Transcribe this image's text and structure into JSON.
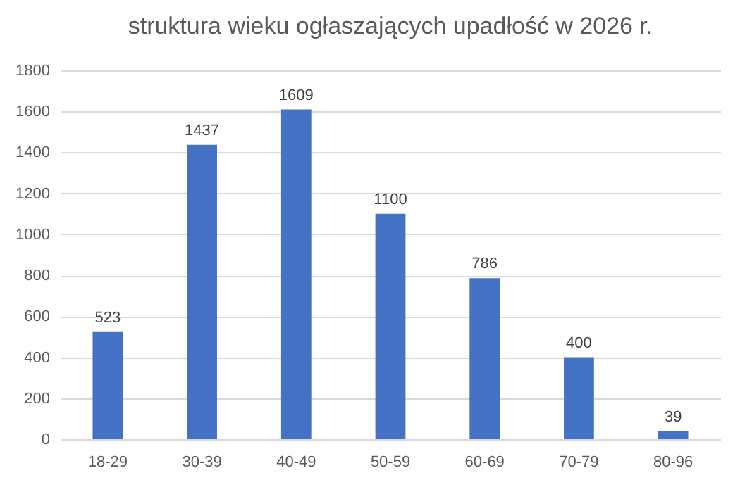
{
  "chart_data": {
    "type": "bar",
    "title": "struktura wieku ogłaszających upadłość w 2026 r.",
    "categories": [
      "18-29",
      "30-39",
      "40-49",
      "50-59",
      "60-69",
      "70-79",
      "80-96"
    ],
    "values": [
      523,
      1437,
      1609,
      1100,
      786,
      400,
      39
    ],
    "color": "#4472c4",
    "ylim": [
      0,
      1800
    ],
    "yticks": [
      0,
      200,
      400,
      600,
      800,
      1000,
      1200,
      1400,
      1600,
      1800
    ],
    "grid": "y",
    "data_labels": true
  }
}
